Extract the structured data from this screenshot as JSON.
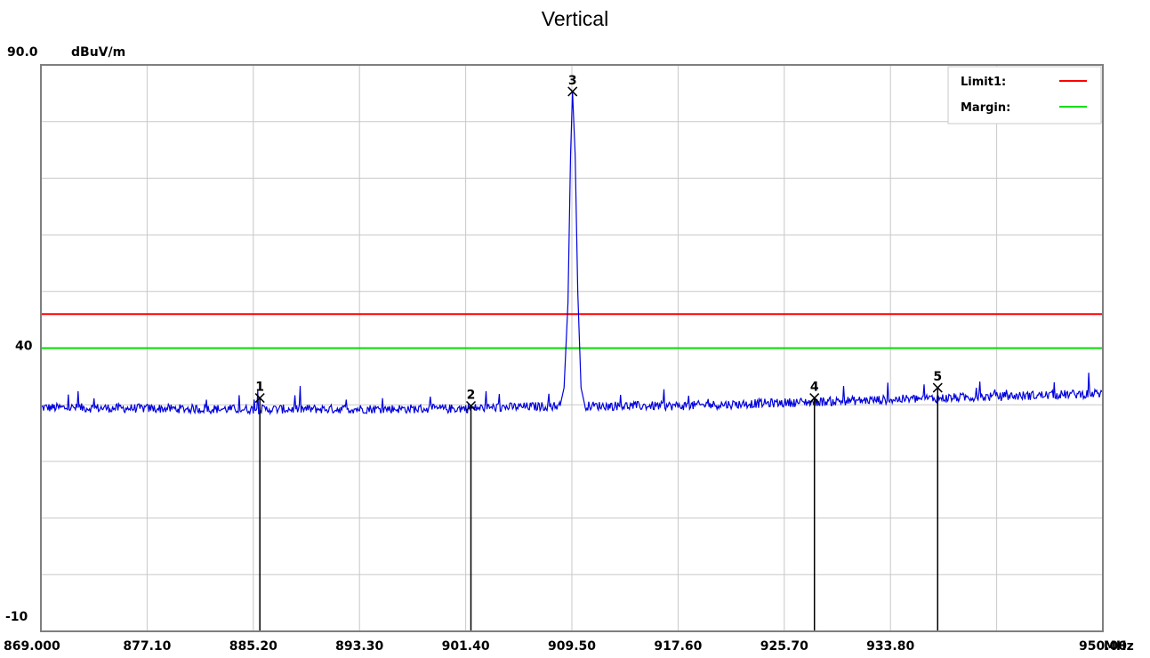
{
  "chart_data": {
    "type": "line",
    "title": "Vertical",
    "y_unit": "dBuV/m",
    "x_unit": "MHz",
    "ylim": [
      -10,
      90
    ],
    "y_ticks": [
      "90.0",
      "40",
      "-10"
    ],
    "xlim": [
      869.0,
      950.0
    ],
    "x_ticks": [
      "869.000",
      "877.10",
      "885.20",
      "893.30",
      "901.40",
      "909.50",
      "917.60",
      "925.70",
      "933.80",
      "950.00"
    ],
    "x_tick_values": [
      869.0,
      877.1,
      885.2,
      893.3,
      901.4,
      909.5,
      917.6,
      925.7,
      933.8,
      950.0
    ],
    "grid": true,
    "limit_lines": [
      {
        "name": "Limit1:",
        "value": 46.0,
        "color": "#ff0000"
      },
      {
        "name": "Margin:",
        "value": 40.0,
        "color": "#00dd00"
      }
    ],
    "legend_position": "top-right",
    "trace": {
      "color": "#0000dd",
      "baseline": [
        [
          869.0,
          29.5
        ],
        [
          885.0,
          29.2
        ],
        [
          900.0,
          29.3
        ],
        [
          908.5,
          29.8
        ],
        [
          917.6,
          29.8
        ],
        [
          935.0,
          31.0
        ],
        [
          950.0,
          32.0
        ]
      ],
      "peak": [
        [
          908.6,
          29.8
        ],
        [
          908.9,
          33.0
        ],
        [
          909.2,
          48.0
        ],
        [
          909.4,
          74.0
        ],
        [
          909.55,
          85.3
        ],
        [
          909.75,
          74.0
        ],
        [
          909.95,
          50.0
        ],
        [
          910.2,
          33.0
        ],
        [
          910.5,
          29.8
        ]
      ]
    },
    "markers": [
      {
        "label": "1",
        "x": 885.7,
        "y": 31.2
      },
      {
        "label": "2",
        "x": 901.8,
        "y": 29.8
      },
      {
        "label": "3",
        "x": 909.55,
        "y": 85.3
      },
      {
        "label": "4",
        "x": 928.0,
        "y": 31.2
      },
      {
        "label": "5",
        "x": 937.4,
        "y": 33.0
      }
    ]
  }
}
